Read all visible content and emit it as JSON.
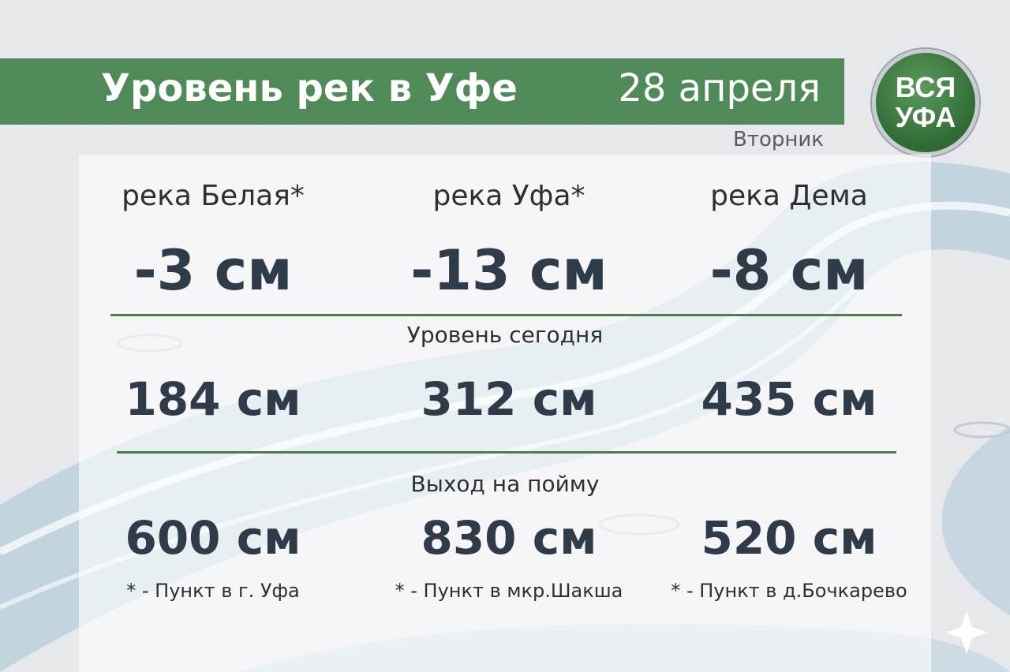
{
  "header": {
    "title": "Уровень рек в Уфе",
    "date": "28 апреля",
    "weekday": "Вторник",
    "logo_line1": "ВСЯ",
    "logo_line2": "УФА"
  },
  "colors": {
    "banner": "#4f8a58",
    "text": "#2f3b48",
    "line": "#4b7d50"
  },
  "rivers": [
    {
      "name": "река Белая*",
      "change": "-3 см",
      "level": "184 см",
      "flood": "600 см",
      "note": "* - Пункт в г. Уфа"
    },
    {
      "name": "река Уфа*",
      "change": "-13 см",
      "level": "312 см",
      "flood": "830 см",
      "note": "* - Пункт в мкр.Шакша"
    },
    {
      "name": "река Дема",
      "change": "-8 см",
      "level": "435 см",
      "flood": "520 см",
      "note": "* - Пункт в д.Бочкарево"
    }
  ],
  "labels": {
    "today": "Уровень сегодня",
    "flood": "Выход на пойму"
  }
}
